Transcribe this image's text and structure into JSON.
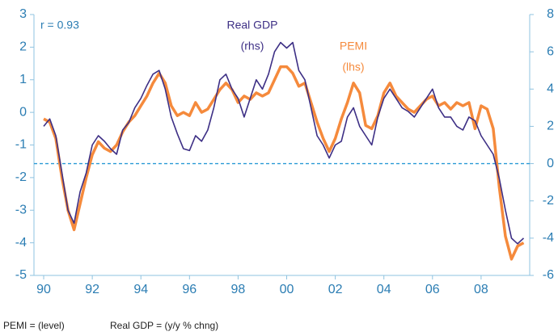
{
  "chart_data": {
    "type": "line",
    "annotations": {
      "r": "r = 0.93",
      "gdp": "Real GDP",
      "gdp_axis": "(rhs)",
      "pemi": "PEMI",
      "pemi_axis": "(lhs)"
    },
    "footnotes": [
      "PEMI = (level)",
      "Real GDP = (y/y % chng)"
    ],
    "x": [
      1990,
      1990.25,
      1990.5,
      1990.75,
      1991,
      1991.25,
      1991.5,
      1991.75,
      1992,
      1992.25,
      1992.5,
      1992.75,
      1993,
      1993.25,
      1993.5,
      1993.75,
      1994,
      1994.25,
      1994.5,
      1994.75,
      1995,
      1995.25,
      1995.5,
      1995.75,
      1996,
      1996.25,
      1996.5,
      1996.75,
      1997,
      1997.25,
      1997.5,
      1997.75,
      1998,
      1998.25,
      1998.5,
      1998.75,
      1999,
      1999.25,
      1999.5,
      1999.75,
      2000,
      2000.25,
      2000.5,
      2000.75,
      2001,
      2001.25,
      2001.5,
      2001.75,
      2002,
      2002.25,
      2002.5,
      2002.75,
      2003,
      2003.25,
      2003.5,
      2003.75,
      2004,
      2004.25,
      2004.5,
      2004.75,
      2005,
      2005.25,
      2005.5,
      2005.75,
      2006,
      2006.25,
      2006.5,
      2006.75,
      2007,
      2007.25,
      2007.5,
      2007.75,
      2008,
      2008.25,
      2008.5,
      2008.75,
      2009,
      2009.25,
      2009.5,
      2009.75
    ],
    "series": [
      {
        "name": "PEMI",
        "color": "#f58a3c",
        "axis": "y",
        "values": [
          -0.2,
          -0.3,
          -0.8,
          -2.0,
          -3.0,
          -3.6,
          -2.8,
          -2.0,
          -1.3,
          -0.9,
          -1.1,
          -1.2,
          -1.0,
          -0.6,
          -0.3,
          -0.1,
          0.2,
          0.5,
          0.9,
          1.2,
          0.9,
          0.2,
          -0.1,
          0.0,
          -0.1,
          0.3,
          0.0,
          0.1,
          0.4,
          0.7,
          0.9,
          0.7,
          0.3,
          0.5,
          0.4,
          0.6,
          0.5,
          0.6,
          1.0,
          1.4,
          1.4,
          1.2,
          0.8,
          0.9,
          0.3,
          -0.3,
          -0.8,
          -1.2,
          -0.8,
          -0.2,
          0.3,
          0.9,
          0.6,
          -0.4,
          -0.5,
          -0.1,
          0.6,
          0.9,
          0.5,
          0.3,
          0.1,
          0.0,
          0.2,
          0.4,
          0.5,
          0.2,
          0.3,
          0.1,
          0.3,
          0.2,
          0.3,
          -0.5,
          0.2,
          0.1,
          -0.5,
          -2.3,
          -3.8,
          -4.5,
          -4.1,
          -4.0
        ]
      },
      {
        "name": "Real GDP",
        "color": "#3d2f85",
        "axis": "y2",
        "values": [
          2.0,
          2.4,
          1.5,
          -0.5,
          -2.5,
          -3.2,
          -1.5,
          -0.5,
          1.0,
          1.5,
          1.2,
          0.8,
          0.5,
          1.8,
          2.2,
          3.0,
          3.5,
          4.2,
          4.8,
          5.0,
          4.0,
          2.5,
          1.6,
          0.8,
          0.7,
          1.5,
          1.2,
          1.8,
          3.0,
          4.5,
          4.8,
          4.0,
          3.5,
          2.5,
          3.5,
          4.5,
          4.0,
          4.8,
          6.0,
          6.5,
          6.2,
          6.5,
          5.0,
          4.5,
          3.0,
          1.5,
          1.0,
          0.3,
          1.0,
          1.2,
          2.5,
          3.0,
          2.0,
          1.5,
          1.0,
          2.5,
          3.5,
          4.0,
          3.5,
          3.0,
          2.8,
          2.5,
          3.0,
          3.5,
          4.0,
          3.0,
          2.5,
          2.5,
          2.0,
          1.8,
          2.5,
          2.3,
          1.5,
          1.0,
          0.5,
          -0.8,
          -2.5,
          -4.0,
          -4.3,
          -4.0
        ]
      }
    ],
    "xlim": [
      1989.6,
      2010.0
    ],
    "xticks": [
      {
        "value": 1990,
        "label": "90"
      },
      {
        "value": 1992,
        "label": "92"
      },
      {
        "value": 1994,
        "label": "94"
      },
      {
        "value": 1996,
        "label": "96"
      },
      {
        "value": 1998,
        "label": "98"
      },
      {
        "value": 2000,
        "label": "00"
      },
      {
        "value": 2002,
        "label": "02"
      },
      {
        "value": 2004,
        "label": "04"
      },
      {
        "value": 2006,
        "label": "06"
      },
      {
        "value": 2008,
        "label": "08"
      }
    ],
    "ylim": [
      -5,
      3
    ],
    "yticks": [
      -5,
      -4,
      -3,
      -2,
      -1,
      0,
      1,
      2,
      3
    ],
    "y2lim": [
      -6,
      8
    ],
    "y2ticks": [
      -6,
      -4,
      -2,
      0,
      2,
      4,
      6,
      8
    ],
    "ref_line_y2": 0
  }
}
